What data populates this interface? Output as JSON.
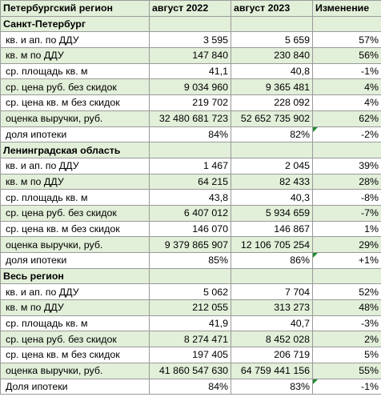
{
  "header": {
    "region": "Петербургский регион",
    "col_2022": "август 2022",
    "col_2023": "август 2023",
    "col_change": "Изменение"
  },
  "sections": [
    {
      "title": "Санкт-Петербург",
      "rows": [
        {
          "label": "кв. и ап. по ДДУ",
          "v2022": "3 595",
          "v2023": "5 659",
          "change": "57%"
        },
        {
          "label": "кв. м по ДДУ",
          "v2022": "147 840",
          "v2023": "230 840",
          "change": "56%"
        },
        {
          "label": "ср. площадь кв. м",
          "v2022": "41,1",
          "v2023": "40,8",
          "change": "-1%"
        },
        {
          "label": "ср. цена руб. без скидок",
          "v2022": "9 034 960",
          "v2023": "9 365 481",
          "change": "4%"
        },
        {
          "label": "ср. цена кв. м без скидок",
          "v2022": "219 702",
          "v2023": "228 092",
          "change": "4%"
        },
        {
          "label": "оценка выручки, руб.",
          "v2022": "32 480 681 723",
          "v2023": "52 652 735 902",
          "change": "62%"
        },
        {
          "label": "доля ипотеки",
          "v2022": "84%",
          "v2023": "82%",
          "change": "-2%"
        }
      ]
    },
    {
      "title": "Ленинградская область",
      "rows": [
        {
          "label": "кв. и ап. по ДДУ",
          "v2022": "1 467",
          "v2023": "2 045",
          "change": "39%"
        },
        {
          "label": "кв. м по ДДУ",
          "v2022": "64 215",
          "v2023": "82 433",
          "change": "28%"
        },
        {
          "label": "ср. площадь кв. м",
          "v2022": "43,8",
          "v2023": "40,3",
          "change": "-8%"
        },
        {
          "label": "ср. цена руб. без скидок",
          "v2022": "6 407 012",
          "v2023": "5 934 659",
          "change": "-7%"
        },
        {
          "label": "ср. цена кв. м без скидок",
          "v2022": "146 070",
          "v2023": "146 867",
          "change": "1%"
        },
        {
          "label": "оценка выручки, руб.",
          "v2022": "9 379 865 907",
          "v2023": "12 106 705 254",
          "change": "29%"
        },
        {
          "label": "доля ипотеки",
          "v2022": "85%",
          "v2023": "86%",
          "change": "+1%"
        }
      ]
    },
    {
      "title": "Весь регион",
      "rows": [
        {
          "label": "кв. и ап. по ДДУ",
          "v2022": "5 062",
          "v2023": "7 704",
          "change": "52%"
        },
        {
          "label": "кв. м по ДДУ",
          "v2022": "212 055",
          "v2023": "313 273",
          "change": "48%"
        },
        {
          "label": "ср. площадь кв. м",
          "v2022": "41,9",
          "v2023": "40,7",
          "change": "-3%"
        },
        {
          "label": "ср. цена руб. без скидок",
          "v2022": "8 274 471",
          "v2023": "8 452 028",
          "change": "2%"
        },
        {
          "label": "ср. цена кв. м без скидок",
          "v2022": "197 405",
          "v2023": "206 719",
          "change": "5%"
        },
        {
          "label": "оценка выручки, руб.",
          "v2022": "41 860 547 630",
          "v2023": "64 759 441 156",
          "change": "55%"
        },
        {
          "label": "Доля ипотеки",
          "v2022": "84%",
          "v2023": "83%",
          "change": "-1%"
        }
      ]
    }
  ],
  "colors": {
    "row_shade": "#e2efd9",
    "grid_line": "#9a9a9a",
    "cell_flag": "#1e8c2e"
  }
}
